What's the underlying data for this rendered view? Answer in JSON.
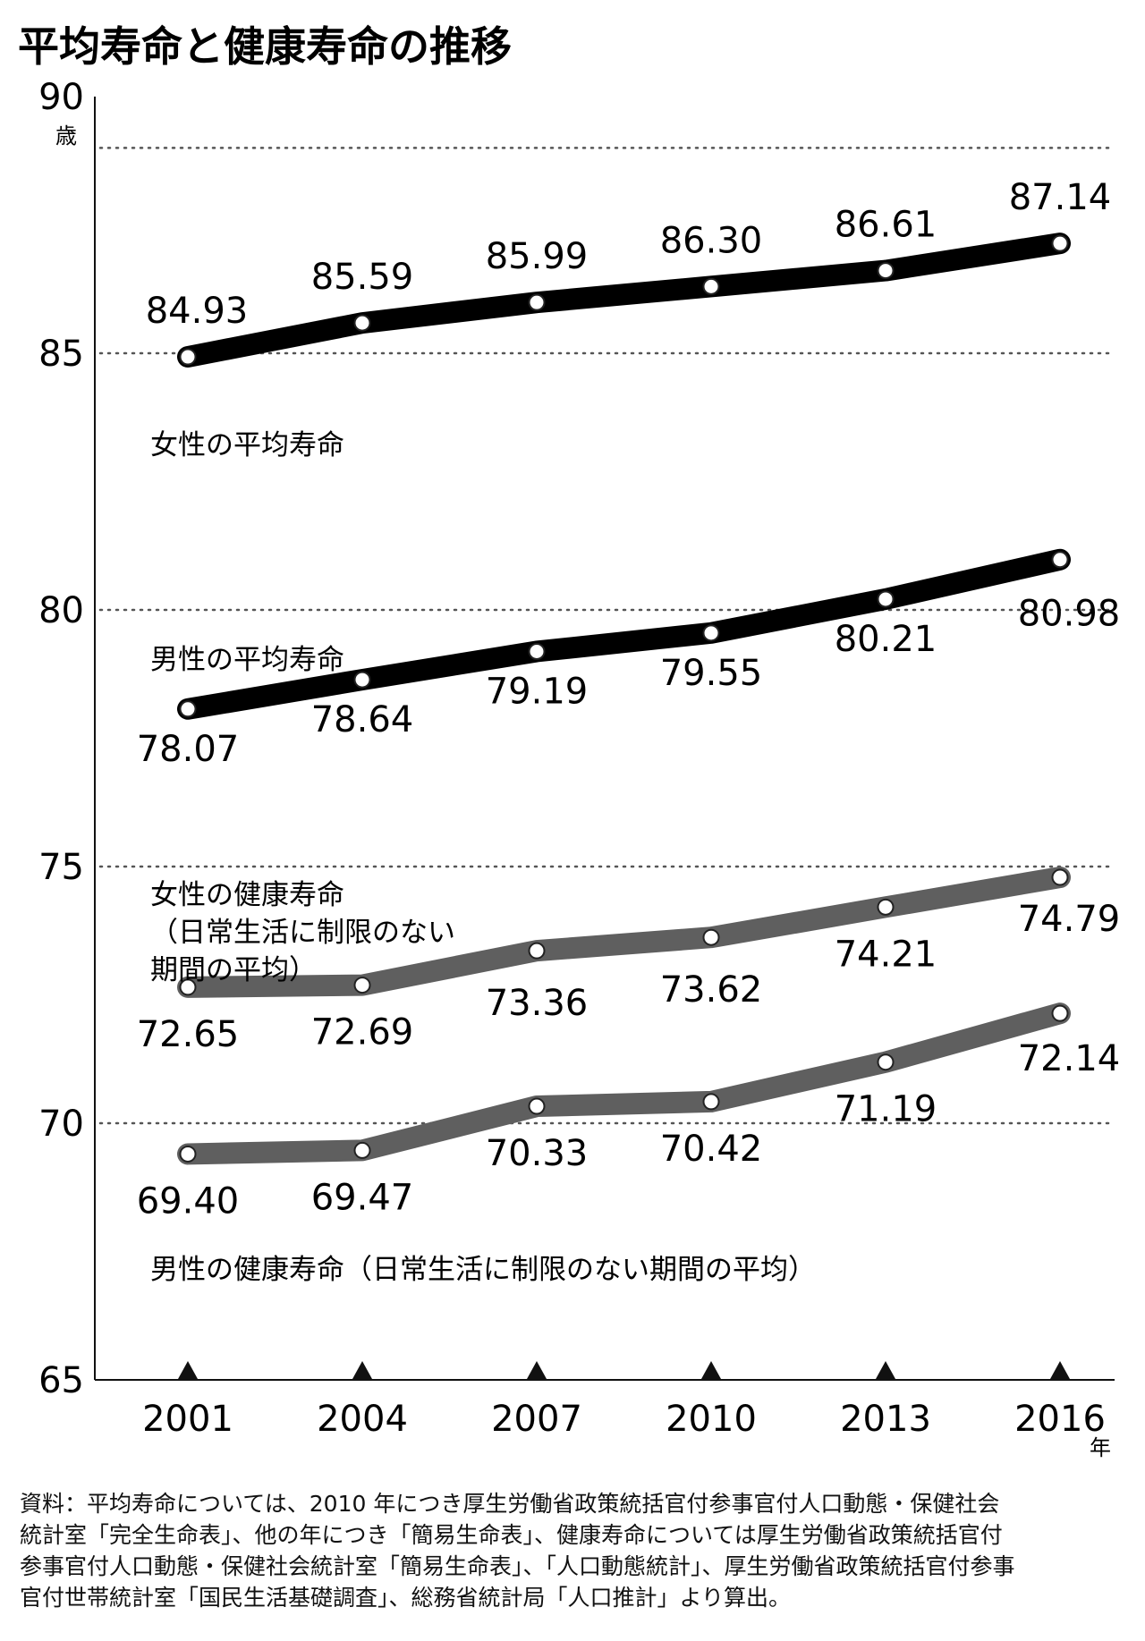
{
  "chart_data": {
    "type": "line",
    "title": "平均寿命と健康寿命の推移",
    "x": [
      "2001",
      "2004",
      "2007",
      "2010",
      "2013",
      "2016"
    ],
    "x_unit": "年",
    "y_unit": "歳",
    "ylim": [
      65,
      90
    ],
    "yticks": [
      65,
      70,
      75,
      80,
      85,
      90
    ],
    "gridlines": [
      70,
      75,
      80,
      85,
      89
    ],
    "grid": "dotted",
    "series": [
      {
        "name": "女性の平均寿命",
        "values": [
          84.93,
          85.59,
          85.99,
          86.3,
          86.61,
          87.14
        ],
        "labels": [
          "84.93",
          "85.59",
          "85.99",
          "86.30",
          "86.61",
          "87.14"
        ],
        "color": "#000000"
      },
      {
        "name": "男性の平均寿命",
        "values": [
          78.07,
          78.64,
          79.19,
          79.55,
          80.21,
          80.98
        ],
        "labels": [
          "78.07",
          "78.64",
          "79.19",
          "79.55",
          "80.21",
          "80.98"
        ],
        "color": "#000000"
      },
      {
        "name": "女性の健康寿命",
        "name_lines": [
          "女性の健康寿命",
          "（日常生活に制限のない",
          "期間の平均）"
        ],
        "values": [
          72.65,
          72.69,
          73.36,
          73.62,
          74.21,
          74.79
        ],
        "labels": [
          "72.65",
          "72.69",
          "73.36",
          "73.62",
          "74.21",
          "74.79"
        ],
        "color": "#5f5f5f"
      },
      {
        "name": "男性の健康寿命（日常生活に制限のない期間の平均）",
        "values": [
          69.4,
          69.47,
          70.33,
          70.42,
          71.19,
          72.14
        ],
        "labels": [
          "69.40",
          "69.47",
          "70.33",
          "70.42",
          "71.19",
          "72.14"
        ],
        "color": "#5f5f5f"
      }
    ]
  },
  "source": {
    "lines": [
      "資料：平均寿命については、2010 年につき厚生労働省政策統括官付参事官付人口動態・保健社会",
      "統計室「完全生命表」、他の年につき「簡易生命表」、健康寿命については厚生労働省政策統括官付",
      "参事官付人口動態・保健社会統計室「簡易生命表」、「人口動態統計」、厚生労働省政策統括官付参事",
      "官付世帯統計室「国民生活基礎調査」、総務省統計局「人口推計」より算出。"
    ]
  }
}
